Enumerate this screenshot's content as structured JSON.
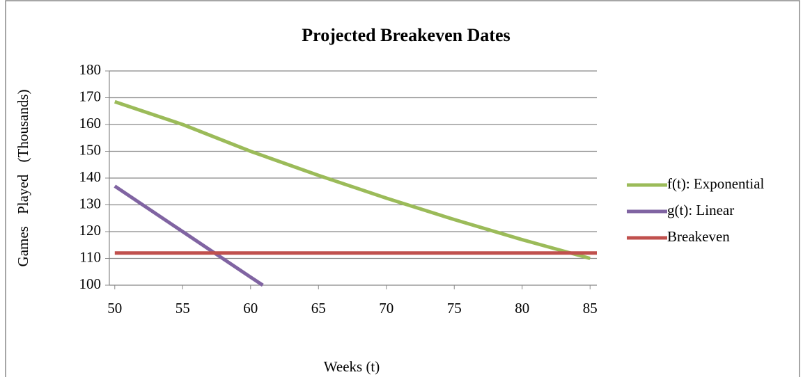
{
  "chart_data": {
    "type": "line",
    "title": "Projected Breakeven Dates",
    "xlabel": "Weeks (t)",
    "ylabel": "Games Played (Thousands)",
    "series": [
      {
        "name": "f(t): Exponential",
        "color": "#9bbb59",
        "x": [
          50,
          55,
          60,
          65,
          70,
          75,
          80,
          85
        ],
        "values": [
          168.5,
          160,
          150,
          141,
          132.5,
          124.5,
          117,
          110
        ]
      },
      {
        "name": "g(t): Linear",
        "color": "#8064a2",
        "x": [
          50,
          55,
          60,
          60.9
        ],
        "values": [
          137,
          120,
          103,
          100
        ]
      },
      {
        "name": "Breakeven",
        "color": "#c0504d",
        "x": [
          50,
          85.5
        ],
        "values": [
          112,
          112
        ]
      }
    ],
    "xlim": [
      49.6,
      85.5
    ],
    "xticks": [
      50,
      55,
      60,
      65,
      70,
      75,
      80,
      85
    ],
    "ylim": [
      100,
      180
    ],
    "yticks": [
      100,
      110,
      120,
      130,
      140,
      150,
      160,
      170,
      180
    ],
    "grid": true,
    "legend": "right"
  }
}
